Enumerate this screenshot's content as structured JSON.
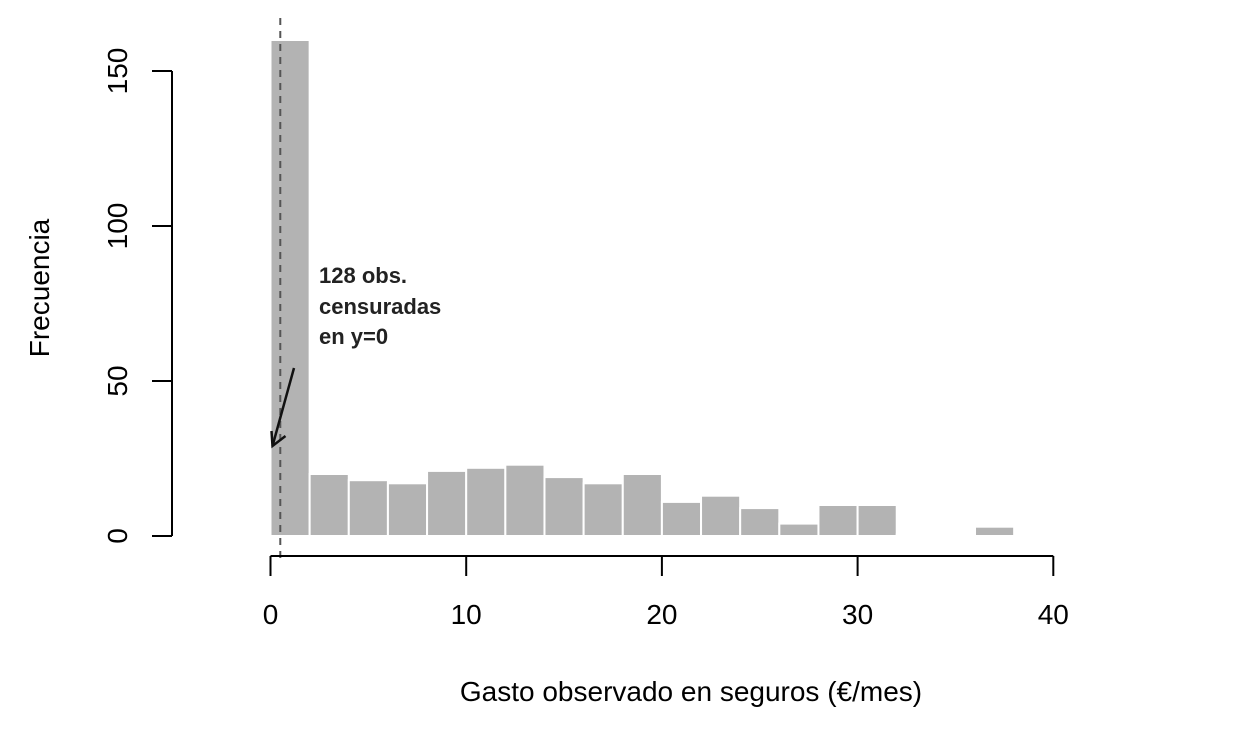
{
  "chart_data": {
    "type": "bar",
    "xlabel": "Gasto observado en seguros (€/mes)",
    "ylabel": "Frecuencia",
    "bin_width": 2,
    "bins": [
      {
        "x0": 0,
        "x1": 2,
        "count": 160
      },
      {
        "x0": 2,
        "x1": 4,
        "count": 20
      },
      {
        "x0": 4,
        "x1": 6,
        "count": 18
      },
      {
        "x0": 6,
        "x1": 8,
        "count": 17
      },
      {
        "x0": 8,
        "x1": 10,
        "count": 21
      },
      {
        "x0": 10,
        "x1": 12,
        "count": 22
      },
      {
        "x0": 12,
        "x1": 14,
        "count": 23
      },
      {
        "x0": 14,
        "x1": 16,
        "count": 19
      },
      {
        "x0": 16,
        "x1": 18,
        "count": 17
      },
      {
        "x0": 18,
        "x1": 20,
        "count": 20
      },
      {
        "x0": 20,
        "x1": 22,
        "count": 11
      },
      {
        "x0": 22,
        "x1": 24,
        "count": 13
      },
      {
        "x0": 24,
        "x1": 26,
        "count": 9
      },
      {
        "x0": 26,
        "x1": 28,
        "count": 4
      },
      {
        "x0": 28,
        "x1": 30,
        "count": 10
      },
      {
        "x0": 30,
        "x1": 32,
        "count": 10
      },
      {
        "x0": 32,
        "x1": 34,
        "count": 0.5
      },
      {
        "x0": 34,
        "x1": 36,
        "count": 0.5
      },
      {
        "x0": 36,
        "x1": 38,
        "count": 3
      },
      {
        "x0": 38,
        "x1": 40,
        "count": 0
      },
      {
        "x0": 40,
        "x1": 42,
        "count": 0
      },
      {
        "x0": 42,
        "x1": 44,
        "count": 0
      },
      {
        "x0": 44,
        "x1": 46,
        "count": 0.5
      }
    ],
    "xticks": [
      0,
      10,
      20,
      30,
      40
    ],
    "xtick_labels": [
      "0",
      "10",
      "20",
      "30",
      "40"
    ],
    "yticks": [
      0,
      50,
      100,
      150
    ],
    "ytick_labels": [
      "0",
      "50",
      "100",
      "150"
    ],
    "xlim": [
      0,
      46
    ],
    "ylim": [
      0,
      160
    ],
    "reference_line": {
      "x": 0.5,
      "style": "dashed"
    },
    "annotation": {
      "lines": [
        "128 obs.",
        "censuradas",
        "en y=0"
      ],
      "arrow_to": {
        "x": 0,
        "y": 30
      }
    },
    "bar_color": "#b3b3b3",
    "grid": false,
    "legend": "none"
  }
}
